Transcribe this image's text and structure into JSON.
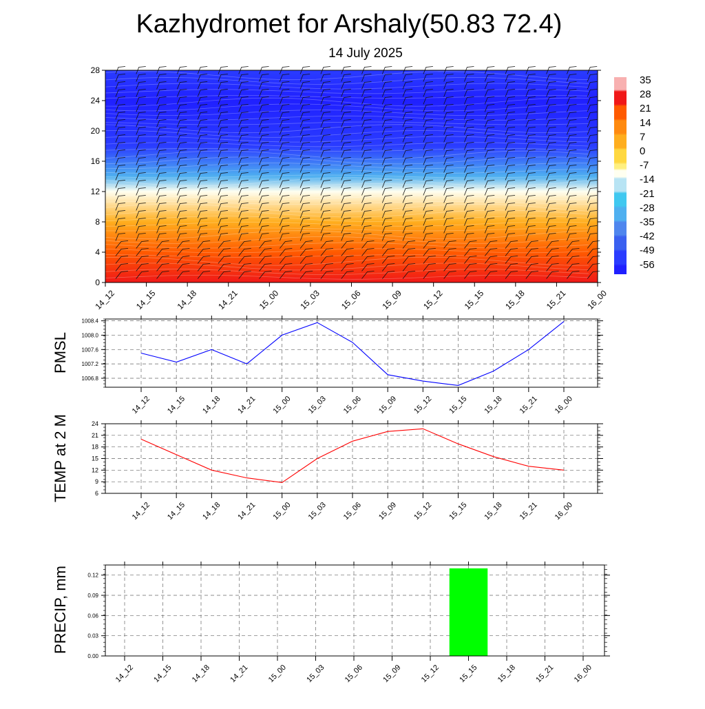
{
  "header": {
    "title": "Kazhydromet for Arshaly(50.83 72.4)",
    "subtitle": "14 July 2025"
  },
  "chart_data": [
    {
      "type": "heatmap",
      "name": "temperature-cross-section",
      "x_tick_labels": [
        "14_12",
        "14_15",
        "14_18",
        "14_21",
        "15_00",
        "15_03",
        "15_06",
        "15_09",
        "15_12",
        "15_15",
        "15_18",
        "15_21",
        "16_00"
      ],
      "y_ticks": [
        0,
        4,
        8,
        12,
        16,
        20,
        24,
        28
      ],
      "ylim": [
        0,
        28
      ],
      "colorbar_labels": [
        "35",
        "28",
        "21",
        "14",
        "7",
        "0",
        "-7",
        "-14",
        "-21",
        "-28",
        "-35",
        "-42",
        "-49",
        "-56"
      ],
      "temperature_bands_approx": [
        {
          "height": 0,
          "value": 28
        },
        {
          "height": 4,
          "value": 21
        },
        {
          "height": 8,
          "value": 7
        },
        {
          "height": 12,
          "value": -10
        },
        {
          "height": 14,
          "value": -28
        },
        {
          "height": 18,
          "value": -49
        },
        {
          "height": 24,
          "value": -56
        },
        {
          "height": 28,
          "value": -53
        }
      ],
      "wind_barbs": true
    },
    {
      "type": "line",
      "name": "pmsl",
      "ylabel": "PMSL",
      "color": "#0000ff",
      "x": [
        "14_12",
        "14_15",
        "14_18",
        "14_21",
        "15_00",
        "15_03",
        "15_06",
        "15_09",
        "15_12",
        "15_15",
        "15_18",
        "15_21",
        "16_00"
      ],
      "values": [
        1007.5,
        1007.25,
        1007.6,
        1007.2,
        1008.0,
        1008.35,
        1007.8,
        1006.9,
        1006.72,
        1006.6,
        1007.0,
        1007.6,
        1008.38
      ],
      "ylim": [
        1006.55,
        1008.45
      ],
      "y_ticks": [
        "1006.8",
        "1007.2",
        "1007.6",
        "1008.0",
        "1008.4"
      ],
      "grid": true
    },
    {
      "type": "line",
      "name": "temp-2m",
      "ylabel": "TEMP at 2 M",
      "color": "#ff0000",
      "x": [
        "14_12",
        "14_15",
        "14_18",
        "14_21",
        "15_00",
        "15_03",
        "15_06",
        "15_09",
        "15_12",
        "15_15",
        "15_18",
        "15_21",
        "16_00"
      ],
      "values": [
        20,
        16,
        12,
        10,
        8.8,
        15,
        19.5,
        22,
        22.7,
        18.8,
        15.5,
        13,
        12
      ],
      "ylim": [
        6,
        24
      ],
      "y_ticks": [
        "6",
        "9",
        "12",
        "15",
        "18",
        "21",
        "24"
      ],
      "grid": true
    },
    {
      "type": "bar",
      "name": "precip",
      "ylabel": "PRECIP, mm",
      "color": "#00ff00",
      "x": [
        "14_12",
        "14_15",
        "14_18",
        "14_21",
        "15_00",
        "15_03",
        "15_06",
        "15_09",
        "15_12",
        "15_15",
        "15_18",
        "15_21",
        "16_00"
      ],
      "values": [
        0,
        0,
        0,
        0,
        0,
        0,
        0,
        0,
        0,
        0.13,
        0,
        0,
        0
      ],
      "ylim": [
        0,
        0.135
      ],
      "y_ticks": [
        "0.00",
        "0.03",
        "0.06",
        "0.09",
        "0.12"
      ],
      "grid": true
    }
  ]
}
